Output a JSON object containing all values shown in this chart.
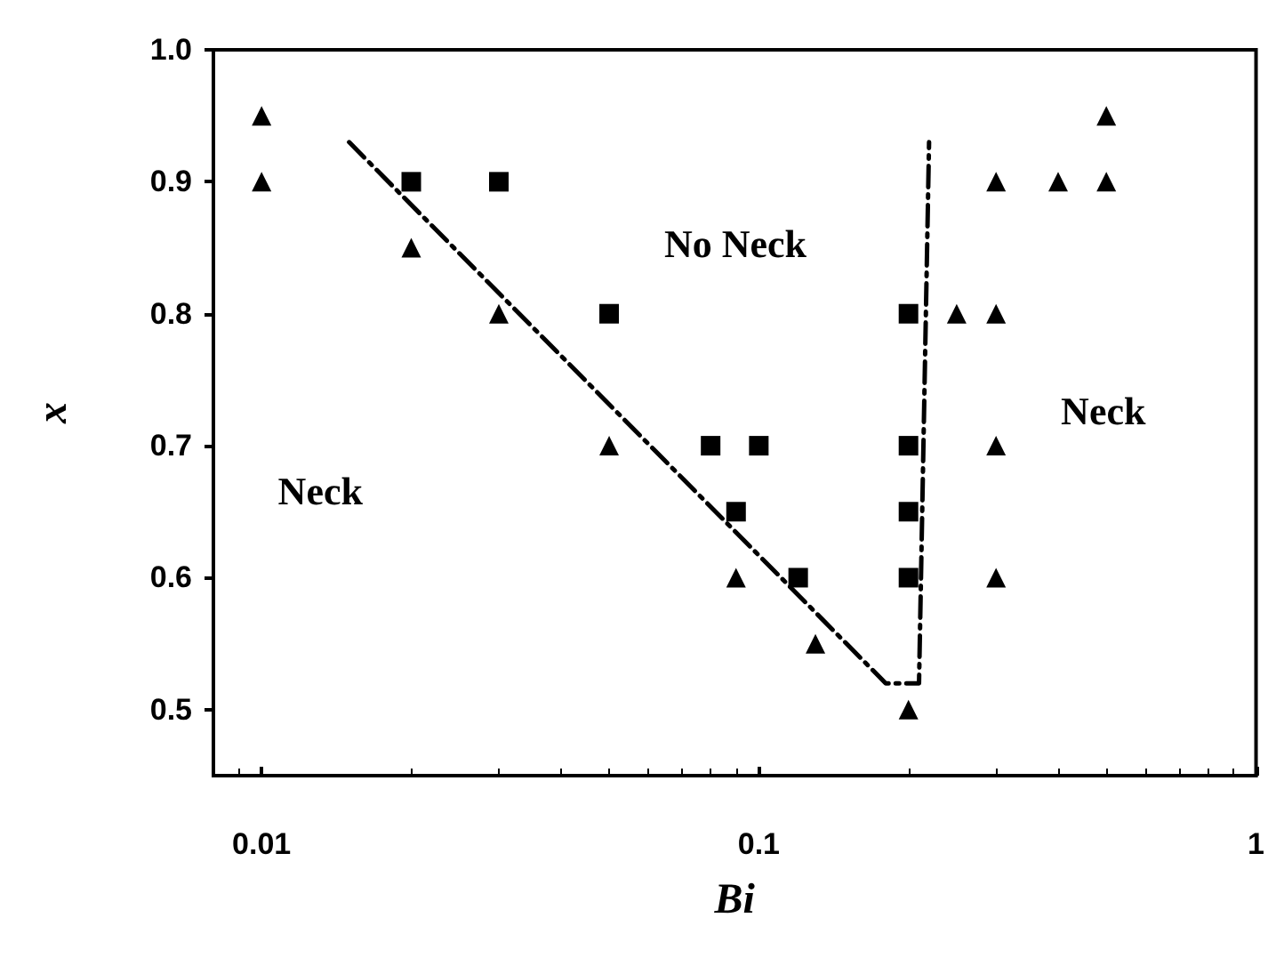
{
  "chart_data": {
    "type": "scatter",
    "xlabel": "Bi",
    "ylabel": "x",
    "log": "x",
    "grid": false,
    "xlim": [
      0.008,
      1
    ],
    "xticks": [
      0.01,
      0.1,
      1
    ],
    "ylim": [
      0.45,
      1
    ],
    "yticks": [
      0.5,
      0.6,
      0.7,
      0.8,
      0.9,
      {
        "value": 1,
        "label": "1.0"
      }
    ],
    "series": [
      {
        "marker": "triangle",
        "color": "#000000",
        "x": [
          0.01,
          0.01,
          0.02,
          0.03,
          0.05,
          0.09,
          0.13,
          0.2,
          0.3,
          0.5,
          0.3,
          0.4,
          0.5,
          0.25,
          0.3,
          0.3
        ],
        "values": [
          0.95,
          0.9,
          0.85,
          0.8,
          0.7,
          0.6,
          0.55,
          0.5,
          0.6,
          0.95,
          0.9,
          0.9,
          0.9,
          0.8,
          0.8,
          0.7
        ]
      },
      {
        "marker": "square",
        "color": "#000000",
        "x": [
          0.02,
          0.03,
          0.05,
          0.08,
          0.09,
          0.1,
          0.12,
          0.2,
          0.2,
          0.2,
          0.2
        ],
        "values": [
          0.9,
          0.9,
          0.8,
          0.7,
          0.65,
          0.7,
          0.6,
          0.8,
          0.7,
          0.65,
          0.6
        ]
      },
      {
        "type": "line",
        "marker": "none",
        "line_style": "dashed",
        "color": "#000000",
        "x": [
          0.015,
          0.18,
          0.21,
          0.22
        ],
        "values": [
          0.93,
          0.52,
          0.52,
          0.93
        ]
      }
    ],
    "annotations": [
      "No Neck",
      "Neck",
      "Neck"
    ]
  }
}
